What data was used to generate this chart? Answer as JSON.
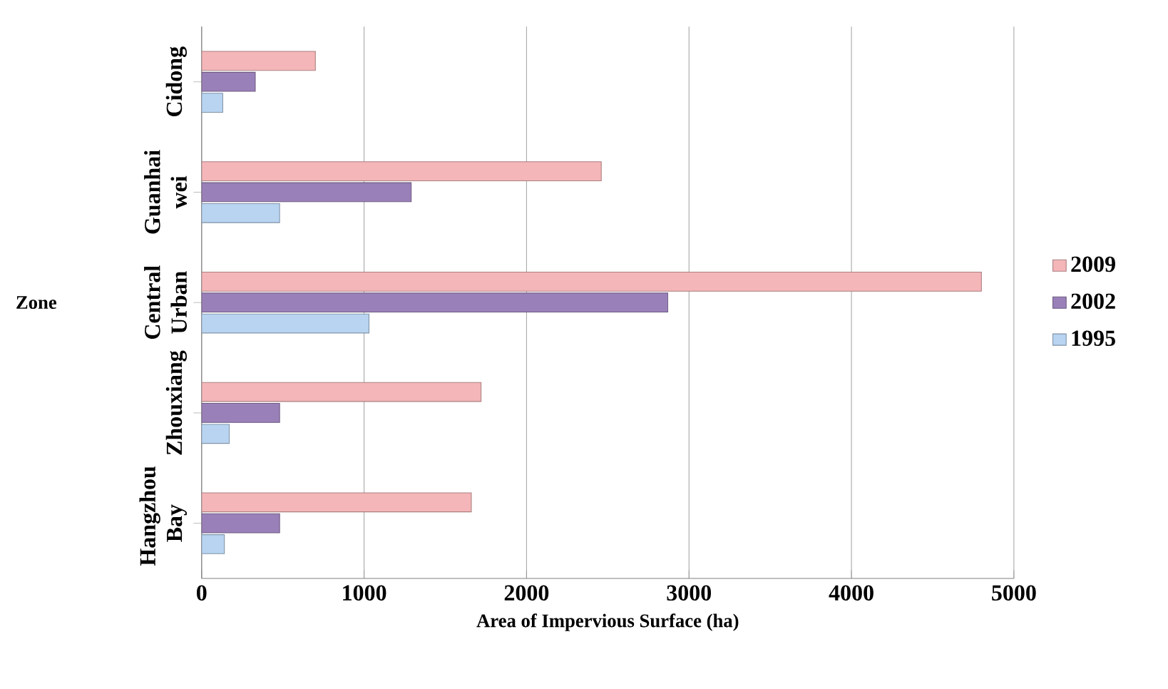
{
  "chart_data": {
    "type": "bar",
    "orientation": "horizontal",
    "xlabel": "Area of Impervious Surface (ha)",
    "ylabel": "Zone",
    "categories": [
      "Cidong",
      "Guanhai wei",
      "Central Urban",
      "Zhouxiang",
      "Hangzhou Bay"
    ],
    "series": [
      {
        "name": "2009",
        "color": "#f4b6b8",
        "values": [
          700,
          2460,
          4800,
          1720,
          1660
        ]
      },
      {
        "name": "2002",
        "color": "#9a80b8",
        "values": [
          330,
          1290,
          2870,
          480,
          480
        ]
      },
      {
        "name": "1995",
        "color": "#b8d4f0",
        "values": [
          130,
          480,
          1030,
          170,
          140
        ]
      }
    ],
    "xlim": [
      0,
      5000
    ],
    "xticks": [
      0,
      1000,
      2000,
      3000,
      4000,
      5000
    ],
    "grid": "x",
    "legend": "right"
  }
}
